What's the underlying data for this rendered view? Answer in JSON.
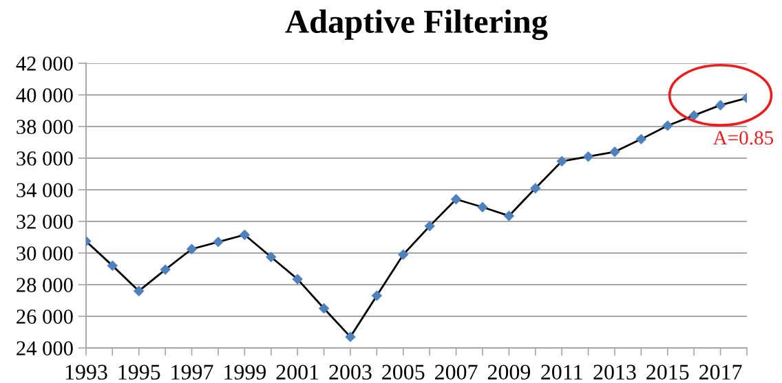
{
  "chart_data": {
    "type": "line",
    "title": "Adaptive Filtering",
    "categories": [
      "1993",
      null,
      "1995",
      null,
      "1997",
      null,
      "1999",
      null,
      "2001",
      null,
      "2003",
      null,
      "2005",
      null,
      "2007",
      null,
      "2009",
      null,
      "2011",
      null,
      "2013",
      null,
      "2015",
      null,
      "2017",
      null
    ],
    "series": [
      {
        "color": "#000000",
        "colors": [
          "#4f81bd",
          "#4f81bd",
          "#4f81bd",
          "#4f81bd",
          "#4f81bd",
          "#4f81bd",
          "#4f81bd",
          "#4f81bd",
          "#4f81bd",
          "#4f81bd",
          "#4f81bd",
          "#4f81bd",
          "#4f81bd",
          "#4f81bd",
          "#4f81bd",
          "#4f81bd",
          "#4f81bd",
          "#4f81bd",
          "#4f81bd",
          "#4f81bd",
          "#4f81bd",
          "#4f81bd",
          "#4f81bd",
          "#4f81bd",
          "#4f81bd",
          "#4f81bd"
        ],
        "values": [
          30750,
          29200,
          27600,
          28950,
          30250,
          30700,
          31150,
          29750,
          28350,
          26500,
          24700,
          27300,
          29900,
          31700,
          33400,
          32900,
          32350,
          34100,
          35800,
          36100,
          36400,
          37200,
          38050,
          38700,
          39350,
          39800
        ]
      }
    ],
    "ylim": [
      24000,
      42000
    ],
    "yticks": [
      {
        "value": 24000,
        "label": "24 000"
      },
      {
        "value": 26000,
        "label": "26 000"
      },
      {
        "value": 28000,
        "label": "28 000"
      },
      {
        "value": 30000,
        "label": "30 000"
      },
      {
        "value": 32000,
        "label": "32 000"
      },
      {
        "value": 34000,
        "label": "34 000"
      },
      {
        "value": 36000,
        "label": "36 000"
      },
      {
        "value": 38000,
        "label": "38 000"
      },
      {
        "value": 40000,
        "label": "40 000"
      },
      {
        "value": 42000,
        "label": "42 000"
      }
    ],
    "grid": "y",
    "marker": "diamond",
    "line_style": "solid",
    "annotations": [
      "A=0.85"
    ]
  }
}
